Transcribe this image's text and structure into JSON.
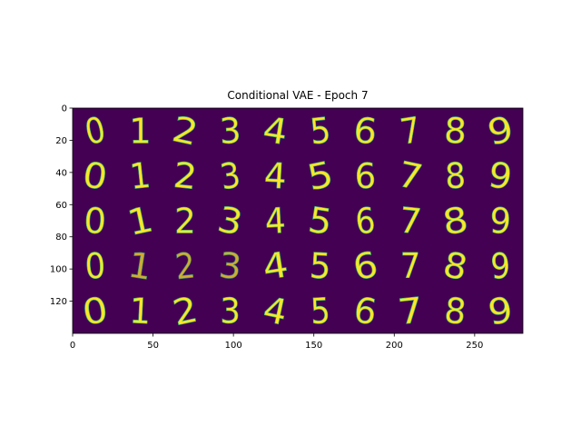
{
  "chart_data": {
    "type": "heatmap",
    "title": "Conditional VAE - Epoch 7",
    "xlabel": "",
    "ylabel": "",
    "xlim": [
      0,
      280
    ],
    "ylim": [
      140,
      0
    ],
    "x_ticks": [
      0,
      50,
      100,
      150,
      200,
      250
    ],
    "y_ticks": [
      0,
      20,
      40,
      60,
      80,
      100,
      120
    ],
    "grid": false,
    "grid_rows": 5,
    "grid_cols": 10,
    "cell_size": 28,
    "background_color": "#440154",
    "digit_color": "#fde725",
    "edge_color": "#35b779",
    "samples": [
      [
        "0",
        "1",
        "2",
        "3",
        "4",
        "5",
        "6",
        "7",
        "8",
        "9"
      ],
      [
        "0",
        "1",
        "2",
        "3",
        "4",
        "5",
        "6",
        "7",
        "8",
        "9"
      ],
      [
        "0",
        "1",
        "2",
        "3",
        "4",
        "5",
        "6",
        "7",
        "8",
        "9"
      ],
      [
        "0",
        "1",
        "2",
        "3",
        "4",
        "5",
        "6",
        "7",
        "8",
        "9"
      ],
      [
        "0",
        "1",
        "2",
        "3",
        "4",
        "5",
        "6",
        "7",
        "8",
        "9"
      ]
    ]
  }
}
